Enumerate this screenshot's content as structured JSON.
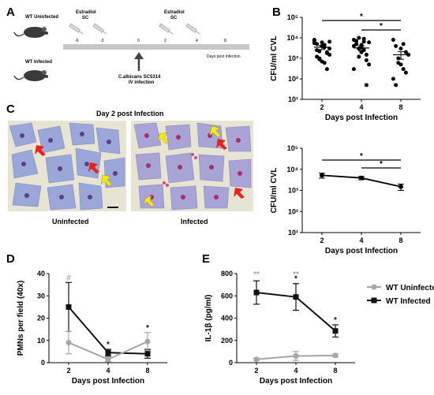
{
  "panels": {
    "A": {
      "label": "A",
      "group_uninfected": "WT Uninfected",
      "group_infected": "WT Infected",
      "estradiol_label_1": "Estradiol",
      "estradiol_label_1b": "SC",
      "estradiol_label_2": "Estradiol",
      "estradiol_label_2b": "SC",
      "timeline_ticks": [
        "-6",
        "-3",
        "0",
        "2",
        "4",
        "8"
      ],
      "timeline_label": "Days post Infection",
      "infection_label_1": "C.albicans SC5314",
      "infection_label_2": "IV infection"
    },
    "C": {
      "label": "C",
      "title": "Day 2 post Infection",
      "left_caption": "Uninfected",
      "right_caption": "Infected"
    }
  },
  "colors": {
    "black_series": "#111111",
    "gray_series": "#a6a6a6",
    "red_arrow": "#e8211c",
    "yellow_arrow": "#f4e81a",
    "cell_fill": "#9aa6d8",
    "nucleus": "#5a3e8a",
    "micro_bg": "#e8e6d6"
  },
  "chart_data": [
    {
      "panel": "B",
      "type": "scatter",
      "title": "",
      "xlabel": "Days post Infection",
      "ylabel": "CFU/ml CVL",
      "yscale": "log",
      "ylim": [
        10,
        100000
      ],
      "y_ticks": [
        10,
        100,
        1000,
        10000,
        100000
      ],
      "y_tick_labels": [
        "10¹",
        "10²",
        "10³",
        "10⁴",
        "10⁵"
      ],
      "categories": [
        "2",
        "4",
        "8"
      ],
      "points": [
        [
          7000,
          5000,
          1000,
          6000,
          3500,
          2000,
          1500,
          8000,
          2500,
          900,
          4000,
          600,
          300,
          3000,
          5500,
          1200,
          2200,
          700,
          4500,
          1800,
          6500
        ],
        [
          8000,
          5000,
          3000,
          2000,
          9000,
          1500,
          6000,
          4000,
          7000,
          1200,
          3500,
          2500,
          800,
          500,
          300,
          5000,
          10000,
          4500,
          6500,
          50
        ],
        [
          8000,
          4000,
          1000,
          500,
          300,
          2000,
          1500,
          100,
          50,
          600,
          3000,
          5000,
          200
        ]
      ],
      "means": [
        3500,
        3200,
        1500
      ],
      "sem": [
        800,
        900,
        600
      ],
      "significance": [
        {
          "from": "2",
          "to": "8",
          "label": "*"
        },
        {
          "from": "4",
          "to": "8",
          "label": "*"
        }
      ]
    },
    {
      "panel": "C-chart",
      "type": "line",
      "title": "",
      "xlabel": "Days post Infection",
      "ylabel": "CFU/ml CVL",
      "yscale": "log",
      "ylim": [
        10,
        100000
      ],
      "y_ticks": [
        10,
        100,
        1000,
        10000,
        100000
      ],
      "y_tick_labels": [
        "10¹",
        "10²",
        "10³",
        "10⁴",
        "10⁵"
      ],
      "categories": [
        "2",
        "4",
        "8"
      ],
      "series": [
        {
          "values": [
            5200,
            3900,
            1500
          ],
          "errors": [
            1400,
            700,
            500
          ]
        }
      ],
      "significance": [
        {
          "from": "2",
          "to": "8",
          "label": "*"
        },
        {
          "from": "4",
          "to": "8",
          "label": "*"
        }
      ]
    },
    {
      "panel": "D",
      "type": "line",
      "title": "",
      "xlabel": "Days post Infection",
      "ylabel": "PMNs per field (40x)",
      "ylim": [
        0,
        40
      ],
      "y_ticks": [
        0,
        10,
        20,
        30,
        40
      ],
      "categories": [
        "2",
        "4",
        "8"
      ],
      "series": [
        {
          "values": [
            25,
            4.5,
            4
          ],
          "errors": [
            11,
            1.5,
            2
          ],
          "color": "#111111",
          "marker": "square"
        },
        {
          "values": [
            9,
            1.5,
            9.5
          ],
          "errors": [
            5,
            1,
            4
          ],
          "color": "#a6a6a6",
          "marker": "circle"
        }
      ],
      "annotations": [
        {
          "x": "2",
          "label": "#",
          "color": "#a6a6a6"
        },
        {
          "x": "4",
          "label": "*",
          "color": "#111111"
        },
        {
          "x": "8",
          "label": "*",
          "color": "#111111"
        }
      ]
    },
    {
      "panel": "E",
      "type": "line",
      "title": "",
      "xlabel": "Days post Infection",
      "ylabel": "IL-1β (pg/ml)",
      "ylim": [
        0,
        800
      ],
      "y_ticks": [
        0,
        200,
        400,
        600,
        800
      ],
      "categories": [
        "2",
        "4",
        "8"
      ],
      "series": [
        {
          "name": "WT Uninfected",
          "values": [
            30,
            60,
            65
          ],
          "errors": [
            10,
            40,
            15
          ],
          "color": "#a6a6a6",
          "marker": "circle"
        },
        {
          "name": "WT Infected",
          "values": [
            630,
            590,
            285
          ],
          "errors": [
            105,
            120,
            55
          ],
          "color": "#111111",
          "marker": "square"
        }
      ],
      "annotations": [
        {
          "x": "2",
          "label": "**",
          "color": "#a6a6a6",
          "row": 0
        },
        {
          "x": "4",
          "label": "**",
          "color": "#a6a6a6",
          "row": 0
        },
        {
          "x": "4",
          "label": "*",
          "color": "#111111",
          "row": 1
        },
        {
          "x": "8",
          "label": "*",
          "color": "#111111",
          "row": 1
        }
      ],
      "legend": "right"
    }
  ]
}
